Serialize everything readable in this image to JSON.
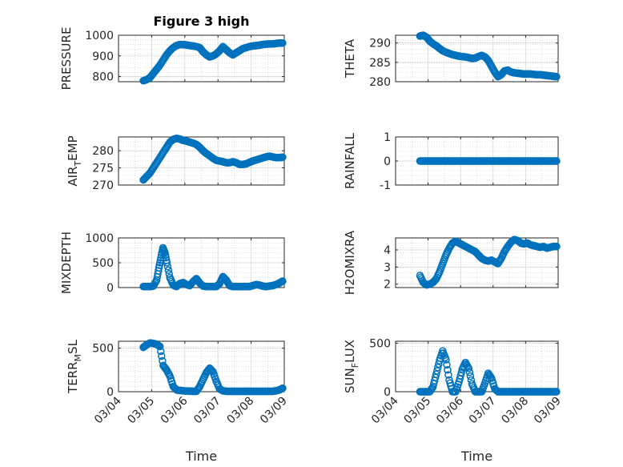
{
  "figure": {
    "title": "Figure 3 high"
  },
  "colors": {
    "marker": "#0072BD",
    "axis": "#262626",
    "grid": "#d9d9d9"
  },
  "chart_data": [
    {
      "id": "pressure",
      "type": "scatter",
      "title": "Figure 3 high",
      "ylabel": "PRESSURE",
      "ylim": [
        775,
        1000
      ],
      "yticks": [
        800,
        900,
        1000
      ],
      "ytick_labels": [
        "800",
        "900",
        "1000"
      ],
      "xlabel": "",
      "xticks": [
        0,
        1,
        2,
        3,
        4,
        5
      ],
      "xtick_labels": [
        "03/04",
        "03/05",
        "03/06",
        "03/07",
        "03/08",
        "03/09"
      ],
      "xlim": [
        0,
        5
      ],
      "show_xticklabels": false,
      "x": [
        0.75,
        0.85,
        0.95,
        1.05,
        1.15,
        1.25,
        1.35,
        1.45,
        1.55,
        1.65,
        1.75,
        1.85,
        1.95,
        2.05,
        2.15,
        2.25,
        2.35,
        2.45,
        2.55,
        2.65,
        2.75,
        2.85,
        2.95,
        3.05,
        3.15,
        3.25,
        3.35,
        3.45,
        3.55,
        3.65,
        3.75,
        3.85,
        3.95,
        4.05,
        4.15,
        4.25,
        4.35,
        4.45,
        4.55,
        4.65,
        4.75,
        4.85,
        4.95
      ],
      "y": [
        780,
        785,
        795,
        815,
        835,
        855,
        880,
        905,
        925,
        940,
        950,
        955,
        955,
        953,
        950,
        948,
        945,
        940,
        920,
        905,
        895,
        900,
        910,
        925,
        945,
        930,
        915,
        905,
        915,
        925,
        935,
        940,
        945,
        948,
        950,
        952,
        955,
        957,
        958,
        958,
        960,
        962,
        962
      ]
    },
    {
      "id": "theta",
      "type": "scatter",
      "ylabel": "THETA",
      "ylim": [
        280,
        292
      ],
      "yticks": [
        280,
        285,
        290
      ],
      "ytick_labels": [
        "280",
        "285",
        "290"
      ],
      "xlabel": "",
      "xticks": [
        0,
        1,
        2,
        3,
        4,
        5
      ],
      "xtick_labels": [
        "03/04",
        "03/05",
        "03/06",
        "03/07",
        "03/08",
        "03/09"
      ],
      "xlim": [
        0,
        5
      ],
      "show_xticklabels": false,
      "x": [
        0.75,
        0.85,
        0.95,
        1.05,
        1.15,
        1.25,
        1.35,
        1.45,
        1.55,
        1.65,
        1.75,
        1.85,
        1.95,
        2.05,
        2.15,
        2.25,
        2.35,
        2.45,
        2.55,
        2.65,
        2.75,
        2.85,
        2.95,
        3.05,
        3.15,
        3.25,
        3.35,
        3.45,
        3.55,
        3.65,
        3.75,
        3.85,
        3.95,
        4.05,
        4.15,
        4.25,
        4.35,
        4.45,
        4.55,
        4.65,
        4.75,
        4.85,
        4.95
      ],
      "y": [
        291.8,
        292,
        291.5,
        290.5,
        289.8,
        289.3,
        288.6,
        288,
        287.6,
        287.3,
        287,
        286.8,
        286.6,
        286.5,
        286.4,
        286.2,
        286,
        286.1,
        286.5,
        286.8,
        286.4,
        285.5,
        284,
        282.5,
        281.3,
        281.8,
        282.8,
        283,
        282.5,
        282.3,
        282.2,
        282.1,
        282,
        282,
        282,
        281.9,
        281.8,
        281.8,
        281.7,
        281.6,
        281.5,
        281.4,
        281.3
      ]
    },
    {
      "id": "air_temp",
      "type": "scatter",
      "ylabel": "AIR",
      "ylabel_sub": "T",
      "ylabel_rest": "EMP",
      "ylim": [
        270,
        284
      ],
      "yticks": [
        270,
        275,
        280
      ],
      "ytick_labels": [
        "270",
        "275",
        "280"
      ],
      "xlabel": "",
      "xticks": [
        0,
        1,
        2,
        3,
        4,
        5
      ],
      "xtick_labels": [
        "03/04",
        "03/05",
        "03/06",
        "03/07",
        "03/08",
        "03/09"
      ],
      "xlim": [
        0,
        5
      ],
      "show_xticklabels": false,
      "x": [
        0.75,
        0.85,
        0.95,
        1.05,
        1.15,
        1.25,
        1.35,
        1.45,
        1.55,
        1.65,
        1.75,
        1.85,
        1.95,
        2.05,
        2.15,
        2.25,
        2.35,
        2.45,
        2.55,
        2.65,
        2.75,
        2.85,
        2.95,
        3.05,
        3.15,
        3.25,
        3.35,
        3.45,
        3.55,
        3.65,
        3.75,
        3.85,
        3.95,
        4.05,
        4.15,
        4.25,
        4.35,
        4.45,
        4.55,
        4.65,
        4.75,
        4.85,
        4.95
      ],
      "y": [
        271.5,
        272.5,
        273.5,
        275,
        276.5,
        278,
        279.5,
        281,
        282.5,
        283.3,
        283.6,
        283.4,
        283,
        282.8,
        282.5,
        282.2,
        281.8,
        281,
        280,
        279.2,
        278.5,
        277.8,
        277.2,
        277,
        276.8,
        276.5,
        276.5,
        276.8,
        276.5,
        276,
        276,
        276.2,
        276.6,
        277,
        277.3,
        277.6,
        277.9,
        278.2,
        278.4,
        278.2,
        278,
        278,
        278.1
      ]
    },
    {
      "id": "rainfall",
      "type": "scatter",
      "ylabel": "RAINFALL",
      "ylim": [
        -1,
        1
      ],
      "yticks": [
        -1,
        0,
        1
      ],
      "ytick_labels": [
        "-1",
        "0",
        "1"
      ],
      "xlabel": "",
      "xticks": [
        0,
        1,
        2,
        3,
        4,
        5
      ],
      "xtick_labels": [
        "03/04",
        "03/05",
        "03/06",
        "03/07",
        "03/08",
        "03/09"
      ],
      "xlim": [
        0,
        5
      ],
      "show_xticklabels": false,
      "x": [
        0.75,
        0.85,
        0.95,
        1.05,
        1.15,
        1.25,
        1.35,
        1.45,
        1.55,
        1.65,
        1.75,
        1.85,
        1.95,
        2.05,
        2.15,
        2.25,
        2.35,
        2.45,
        2.55,
        2.65,
        2.75,
        2.85,
        2.95,
        3.05,
        3.15,
        3.25,
        3.35,
        3.45,
        3.55,
        3.65,
        3.75,
        3.85,
        3.95,
        4.05,
        4.15,
        4.25,
        4.35,
        4.45,
        4.55,
        4.65,
        4.75,
        4.85,
        4.95
      ],
      "y": [
        0,
        0,
        0,
        0,
        0,
        0,
        0,
        0,
        0,
        0,
        0,
        0,
        0,
        0,
        0,
        0,
        0,
        0,
        0,
        0,
        0,
        0,
        0,
        0,
        0,
        0,
        0,
        0,
        0,
        0,
        0,
        0,
        0,
        0,
        0,
        0,
        0,
        0,
        0,
        0,
        0,
        0,
        0
      ]
    },
    {
      "id": "mixdepth",
      "type": "scatter",
      "ylabel": "MIXDEPTH",
      "ylim": [
        0,
        1000
      ],
      "yticks": [
        0,
        500,
        1000
      ],
      "ytick_labels": [
        "0",
        "500",
        "1000"
      ],
      "xlabel": "",
      "xticks": [
        0,
        1,
        2,
        3,
        4,
        5
      ],
      "xtick_labels": [
        "03/04",
        "03/05",
        "03/06",
        "03/07",
        "03/08",
        "03/09"
      ],
      "xlim": [
        0,
        5
      ],
      "show_xticklabels": false,
      "x": [
        0.75,
        0.85,
        0.95,
        1.05,
        1.15,
        1.22,
        1.28,
        1.34,
        1.4,
        1.46,
        1.55,
        1.65,
        1.75,
        1.85,
        1.95,
        2.05,
        2.15,
        2.25,
        2.35,
        2.45,
        2.55,
        2.65,
        2.75,
        2.85,
        2.95,
        3.05,
        3.15,
        3.25,
        3.35,
        3.45,
        3.55,
        3.65,
        3.75,
        3.85,
        3.95,
        4.05,
        4.15,
        4.25,
        4.35,
        4.45,
        4.55,
        4.65,
        4.75,
        4.85,
        4.95
      ],
      "y": [
        20,
        20,
        20,
        30,
        150,
        400,
        600,
        800,
        700,
        500,
        200,
        50,
        20,
        80,
        100,
        60,
        40,
        120,
        180,
        90,
        30,
        20,
        20,
        20,
        20,
        80,
        220,
        150,
        40,
        20,
        20,
        20,
        20,
        20,
        20,
        40,
        60,
        50,
        30,
        20,
        30,
        40,
        60,
        90,
        130
      ]
    },
    {
      "id": "h2omixra",
      "type": "scatter",
      "ylabel": "H2OMIXRA",
      "ylim": [
        1.8,
        4.7
      ],
      "yticks": [
        2,
        3,
        4
      ],
      "ytick_labels": [
        "2",
        "3",
        "4"
      ],
      "xlabel": "",
      "xticks": [
        0,
        1,
        2,
        3,
        4,
        5
      ],
      "xtick_labels": [
        "03/04",
        "03/05",
        "03/06",
        "03/07",
        "03/08",
        "03/09"
      ],
      "xlim": [
        0,
        5
      ],
      "show_xticklabels": false,
      "x": [
        0.75,
        0.85,
        0.95,
        1.05,
        1.15,
        1.25,
        1.35,
        1.45,
        1.55,
        1.65,
        1.75,
        1.85,
        1.95,
        2.05,
        2.15,
        2.25,
        2.35,
        2.45,
        2.55,
        2.65,
        2.75,
        2.85,
        2.95,
        3.05,
        3.15,
        3.25,
        3.35,
        3.45,
        3.55,
        3.65,
        3.75,
        3.85,
        3.95,
        4.05,
        4.15,
        4.25,
        4.35,
        4.45,
        4.55,
        4.65,
        4.75,
        4.85,
        4.95
      ],
      "y": [
        2.5,
        2.1,
        1.95,
        2,
        2.1,
        2.3,
        2.7,
        3.2,
        3.7,
        4.1,
        4.4,
        4.5,
        4.4,
        4.3,
        4.2,
        4.1,
        4,
        3.9,
        3.7,
        3.5,
        3.4,
        3.35,
        3.4,
        3.3,
        3.2,
        3.5,
        3.9,
        4.2,
        4.45,
        4.6,
        4.55,
        4.4,
        4.35,
        4.4,
        4.3,
        4.25,
        4.2,
        4.15,
        4.2,
        4.1,
        4.15,
        4.2,
        4.2
      ]
    },
    {
      "id": "terr_msl",
      "type": "scatter",
      "ylabel": "TERR",
      "ylabel_sub": "M",
      "ylabel_rest": "SL",
      "ylim": [
        0,
        580
      ],
      "yticks": [
        0,
        500
      ],
      "ytick_labels": [
        "0",
        "500"
      ],
      "xlabel": "Time",
      "xticks": [
        0,
        1,
        2,
        3,
        4,
        5
      ],
      "xtick_labels": [
        "03/04",
        "03/05",
        "03/06",
        "03/07",
        "03/08",
        "03/09"
      ],
      "xlim": [
        0,
        5
      ],
      "show_xticklabels": true,
      "x": [
        0.75,
        0.85,
        0.95,
        1.05,
        1.15,
        1.25,
        1.35,
        1.45,
        1.55,
        1.65,
        1.75,
        1.85,
        1.95,
        2.05,
        2.15,
        2.25,
        2.35,
        2.45,
        2.55,
        2.65,
        2.75,
        2.85,
        2.95,
        3.05,
        3.15,
        3.25,
        3.35,
        3.45,
        3.55,
        3.65,
        3.75,
        3.85,
        3.95,
        4.05,
        4.15,
        4.25,
        4.35,
        4.45,
        4.55,
        4.65,
        4.75,
        4.85,
        4.95
      ],
      "y": [
        510,
        540,
        560,
        555,
        545,
        520,
        300,
        250,
        180,
        60,
        20,
        15,
        10,
        8,
        6,
        5,
        5,
        60,
        140,
        220,
        270,
        230,
        120,
        30,
        10,
        5,
        5,
        5,
        5,
        5,
        5,
        5,
        5,
        5,
        5,
        5,
        5,
        5,
        5,
        5,
        10,
        20,
        40
      ]
    },
    {
      "id": "sun_flux",
      "type": "scatter",
      "ylabel": "SUN",
      "ylabel_sub": "F",
      "ylabel_rest": "LUX",
      "ylim": [
        0,
        520
      ],
      "yticks": [
        0,
        500
      ],
      "ytick_labels": [
        "0",
        "500"
      ],
      "xlabel": "Time",
      "xticks": [
        0,
        1,
        2,
        3,
        4,
        5
      ],
      "xtick_labels": [
        "03/04",
        "03/05",
        "03/06",
        "03/07",
        "03/08",
        "03/09"
      ],
      "xlim": [
        0,
        5
      ],
      "show_xticklabels": true,
      "x": [
        0.75,
        0.85,
        0.95,
        1.05,
        1.15,
        1.25,
        1.35,
        1.45,
        1.55,
        1.65,
        1.75,
        1.85,
        1.95,
        2.05,
        2.15,
        2.25,
        2.35,
        2.45,
        2.55,
        2.65,
        2.75,
        2.85,
        2.95,
        3.05,
        3.15,
        3.25,
        3.35,
        3.45,
        3.55,
        3.65,
        3.75,
        3.85,
        3.95,
        4.05,
        4.15,
        4.25,
        4.35,
        4.45,
        4.55,
        4.65,
        4.75,
        4.85,
        4.95
      ],
      "y": [
        0,
        0,
        0,
        0,
        50,
        180,
        320,
        420,
        330,
        120,
        0,
        0,
        100,
        230,
        300,
        240,
        80,
        0,
        0,
        0,
        90,
        190,
        140,
        30,
        0,
        0,
        0,
        0,
        0,
        0,
        0,
        0,
        0,
        0,
        0,
        0,
        0,
        0,
        0,
        0,
        0,
        0,
        0
      ]
    }
  ]
}
